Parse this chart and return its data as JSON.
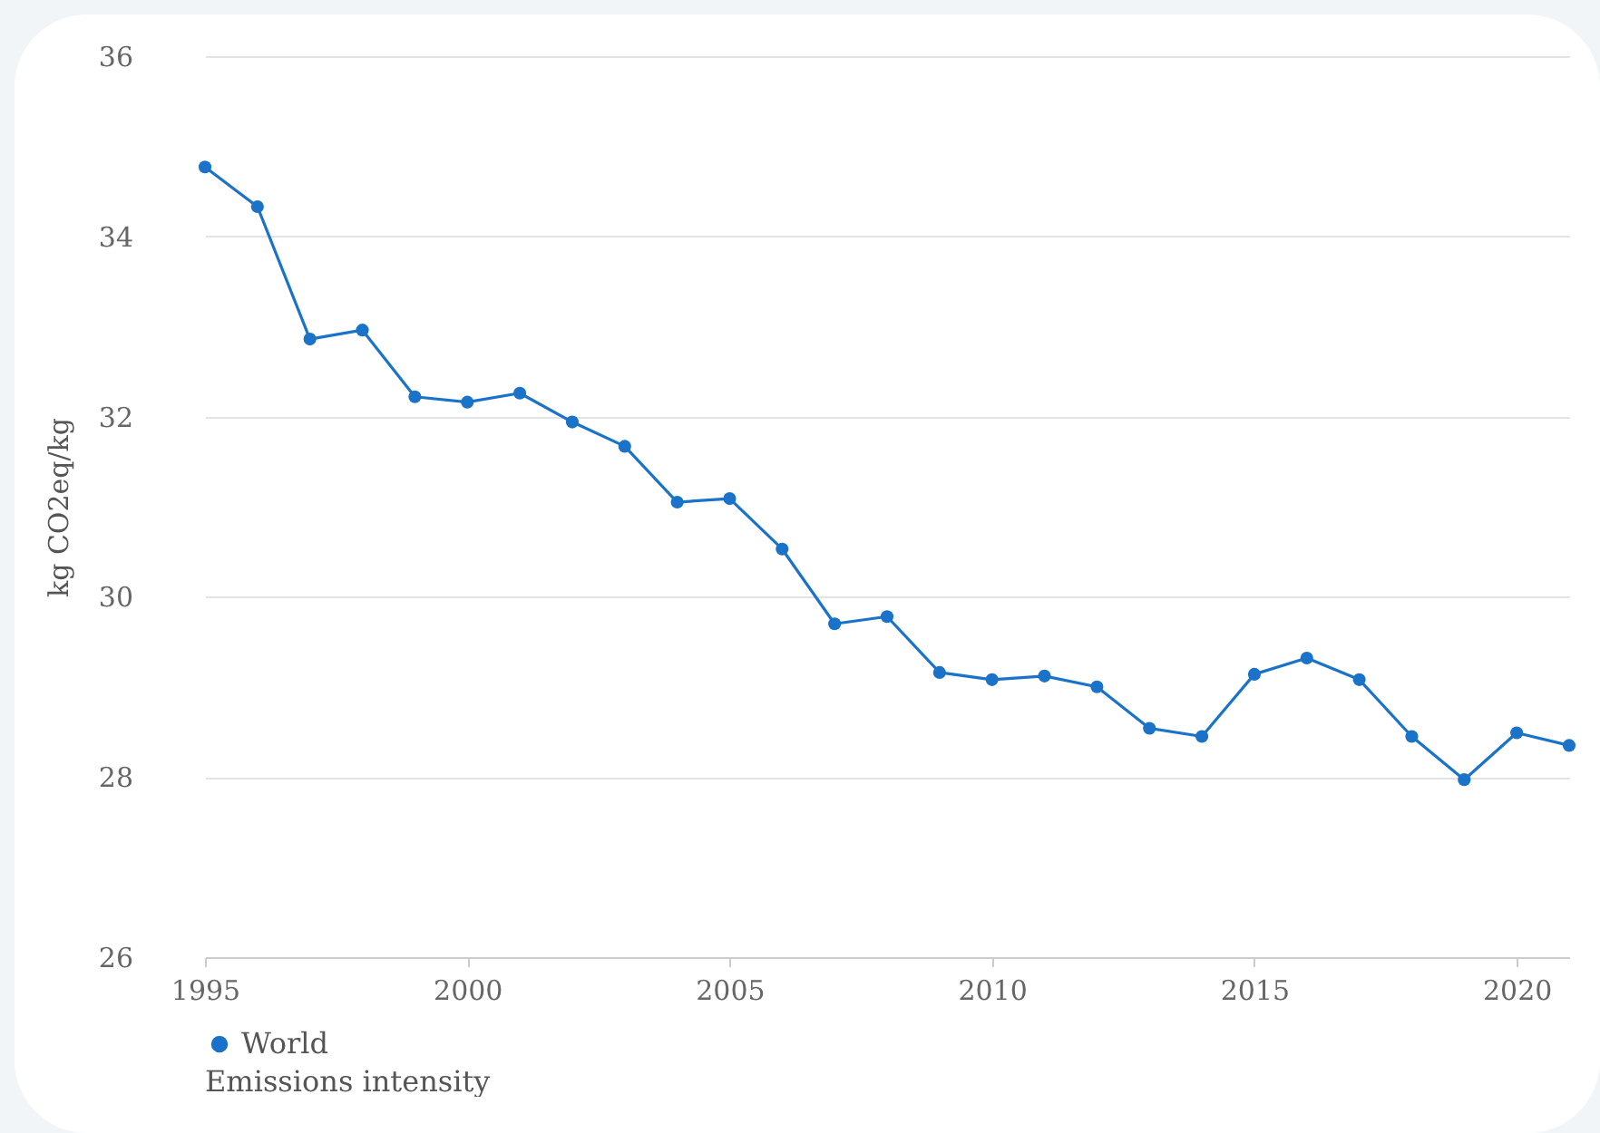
{
  "chart_data": {
    "type": "line",
    "ylabel": "kg CO2eq/kg",
    "legend_title": "Emissions intensity",
    "x": [
      1995,
      1996,
      1997,
      1998,
      1999,
      2000,
      2001,
      2002,
      2003,
      2004,
      2005,
      2006,
      2007,
      2008,
      2009,
      2010,
      2011,
      2012,
      2013,
      2014,
      2015,
      2016,
      2017,
      2018,
      2019,
      2020,
      2021
    ],
    "series": [
      {
        "name": "World",
        "color": "#1a73c9",
        "values": [
          34.77,
          34.33,
          32.86,
          32.96,
          32.22,
          32.16,
          32.26,
          31.94,
          31.67,
          31.05,
          31.09,
          30.53,
          29.7,
          29.78,
          29.16,
          29.08,
          29.12,
          29.0,
          28.54,
          28.45,
          29.14,
          29.32,
          29.08,
          28.45,
          27.97,
          28.49,
          28.35
        ]
      }
    ],
    "xlim": [
      1995,
      2021
    ],
    "xticks": [
      1995,
      2000,
      2005,
      2010,
      2015,
      2020
    ],
    "ylim": [
      26,
      36
    ],
    "yticks": [
      26,
      28,
      30,
      32,
      34,
      36
    ],
    "grid": "y",
    "legend": "bottom",
    "marker": "circle",
    "line_style": "solid"
  }
}
